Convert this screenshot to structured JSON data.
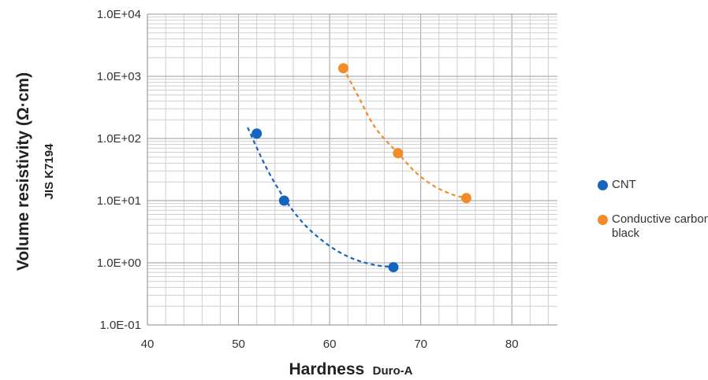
{
  "chart_data": {
    "type": "scatter",
    "title": "",
    "xlabel": "Hardness",
    "xlabel_sub": "Duro-A",
    "ylabel": "Volume resistivity (Ω·cm)",
    "ylabel_sub": "JIS K7194",
    "xlim": [
      40,
      85
    ],
    "xticks": [
      40,
      50,
      60,
      70,
      80
    ],
    "xtick_labels": [
      "40",
      "50",
      "60",
      "70",
      "80"
    ],
    "ylim": [
      0.1,
      10000
    ],
    "yscale": "log",
    "yticks": [
      0.1,
      1,
      10,
      100,
      1000,
      10000
    ],
    "ytick_labels": [
      "1.0E-01",
      "1.0E+00",
      "1.0E+01",
      "1.0E+02",
      "1.0E+03",
      "1.0E+04"
    ],
    "grid": true,
    "legend_position": "right",
    "series": [
      {
        "name": "CNT",
        "color": "#1565c0",
        "x": [
          52,
          55,
          67
        ],
        "y": [
          120,
          10,
          0.85
        ],
        "trend_x": [
          51,
          53,
          55,
          57,
          59,
          61,
          63,
          65,
          67
        ],
        "trend_y": [
          150,
          35,
          11,
          4.5,
          2.4,
          1.5,
          1.1,
          0.92,
          0.85
        ]
      },
      {
        "name": "Conductive carbon black",
        "color": "#f28c28",
        "x": [
          61.5,
          67.5,
          75
        ],
        "y": [
          1350,
          58,
          11
        ],
        "trend_x": [
          61.5,
          63,
          65,
          67.5,
          69.5,
          71.5,
          73.5,
          75
        ],
        "trend_y": [
          1350,
          520,
          150,
          58,
          28,
          17,
          12.5,
          11
        ]
      }
    ]
  }
}
